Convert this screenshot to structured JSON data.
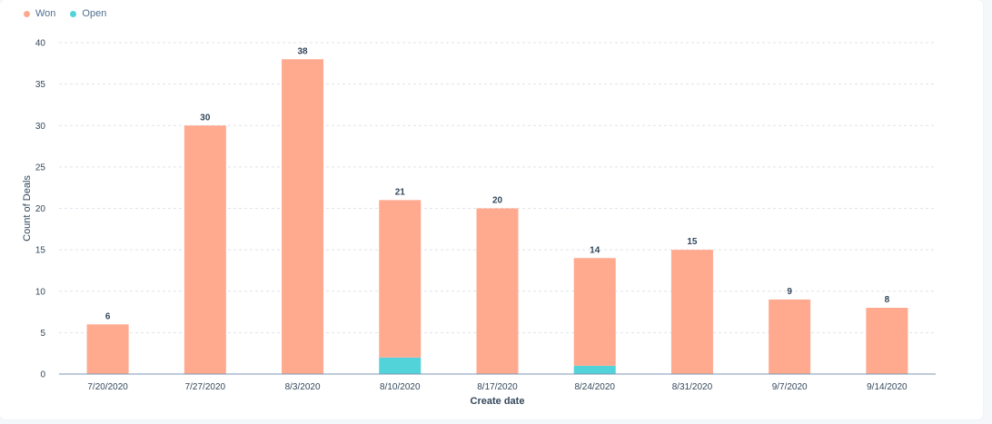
{
  "chart_data": {
    "type": "bar",
    "stacked": true,
    "categories": [
      "7/20/2020",
      "7/27/2020",
      "8/3/2020",
      "8/10/2020",
      "8/17/2020",
      "8/24/2020",
      "8/31/2020",
      "9/7/2020",
      "9/14/2020"
    ],
    "series": [
      {
        "name": "Won",
        "color": "#ffa98f",
        "values": [
          6,
          30,
          38,
          19,
          20,
          13,
          15,
          9,
          8
        ]
      },
      {
        "name": "Open",
        "color": "#51d3d9",
        "values": [
          0,
          0,
          0,
          2,
          0,
          1,
          0,
          0,
          0
        ]
      }
    ],
    "totals": [
      6,
      30,
      38,
      21,
      20,
      14,
      15,
      9,
      8
    ],
    "xlabel": "Create date",
    "ylabel": "Count of Deals",
    "ylim": [
      0,
      40
    ],
    "yticks": [
      0,
      5,
      10,
      15,
      20,
      25,
      30,
      35,
      40
    ],
    "grid": true,
    "legend_position": "top-left"
  }
}
